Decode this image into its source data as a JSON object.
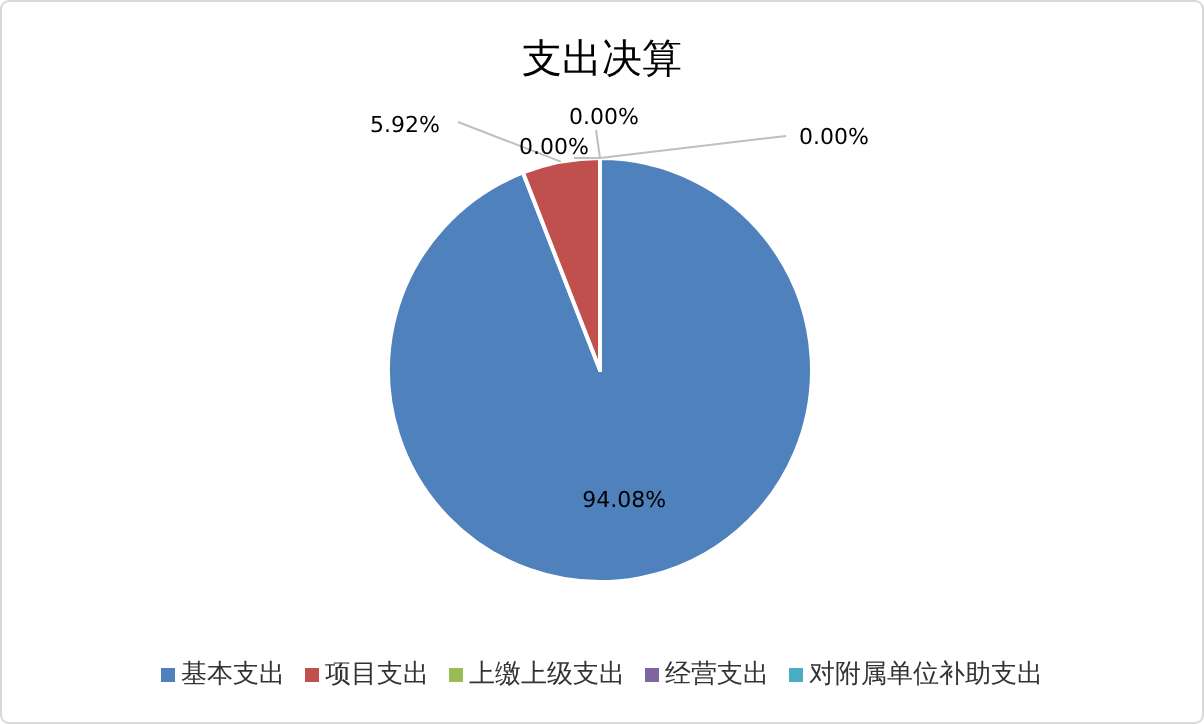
{
  "chart_data": {
    "type": "pie",
    "title": "支出决算",
    "categories": [
      "基本支出",
      "项目支出",
      "上缴上级支出",
      "经营支出",
      "对附属单位补助支出"
    ],
    "values": [
      94.08,
      5.92,
      0,
      0,
      0
    ],
    "colors": [
      "#4f81bd",
      "#c0504d",
      "#9bbb59",
      "#8064a2",
      "#4bacc6"
    ],
    "value_labels": [
      "94.08%",
      "5.92%",
      "0.00%",
      "0.00%",
      "0.00%"
    ],
    "legend": "bottom"
  }
}
